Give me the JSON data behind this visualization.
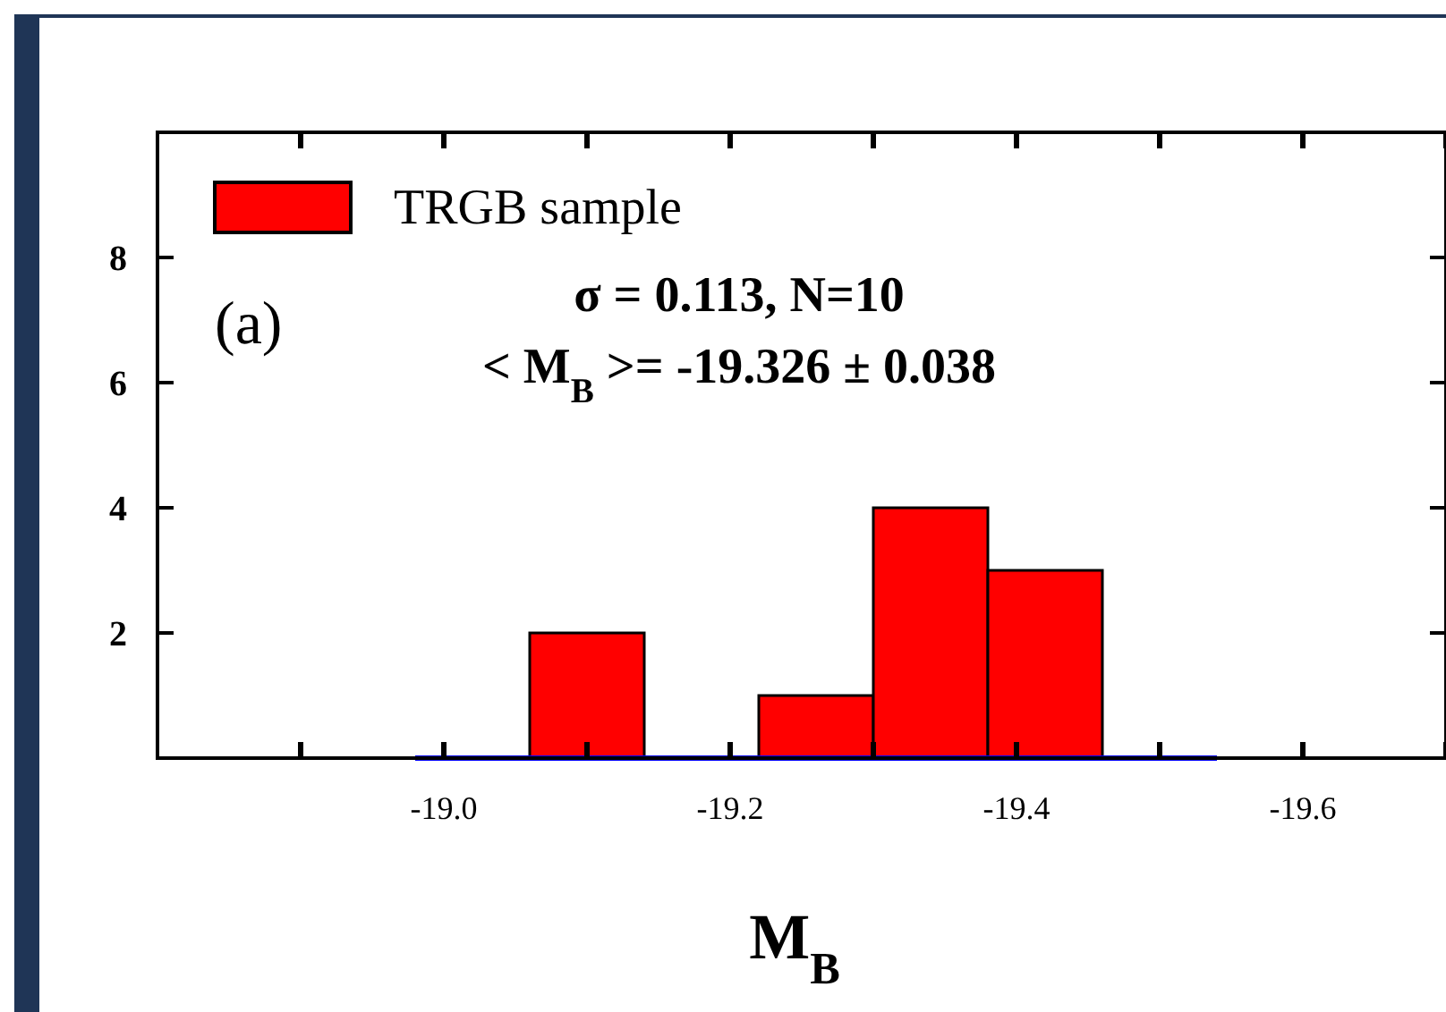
{
  "chart_data": {
    "type": "histogram",
    "xlabel": "M$_{B}$",
    "bins": [
      -18.98,
      -19.06,
      -19.14,
      -19.22,
      -19.3,
      -19.38,
      -19.46,
      -19.54
    ],
    "series": [
      {
        "name": "TRGB sample",
        "color": "#ff0000",
        "values": [
          0,
          2,
          0,
          1,
          4,
          3,
          0
        ]
      },
      {
        "type": "line",
        "color": "#0000ff",
        "x": [
          -18.98,
          -19.54
        ],
        "values": [
          0,
          0
        ]
      }
    ],
    "xlim": [
      -18.8,
      -19.7
    ],
    "xticks": [
      {
        "value": -18.9,
        "label": null
      },
      {
        "value": -19.0,
        "label": "-19.0"
      },
      {
        "value": -19.1,
        "label": null
      },
      {
        "value": -19.2,
        "label": "-19.2"
      },
      {
        "value": -19.3,
        "label": null
      },
      {
        "value": -19.4,
        "label": "-19.4"
      },
      {
        "value": -19.5,
        "label": null
      },
      {
        "value": -19.6,
        "label": "-19.6"
      },
      {
        "value": -19.7,
        "label": null
      }
    ],
    "ylim": [
      0,
      10
    ],
    "yticks": [
      2,
      4,
      6,
      8
    ],
    "legend": "top left",
    "annotations": [
      "(a)",
      "σ = 0.113, N=10",
      "< M$_{B}$ >= -19.326 ± 0.038"
    ]
  }
}
